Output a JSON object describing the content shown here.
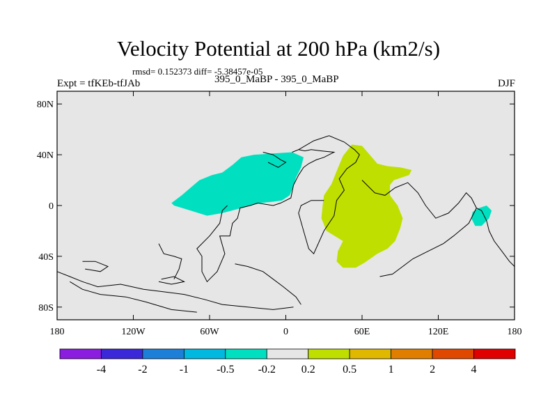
{
  "title": "Velocity Potential at 200 hPa (km2/s)",
  "stats": "rmsd= 0.152373 diff= -5.38457e-05",
  "left_label": "Expt = tfKEb-tfJAb",
  "center_label": "395_0_MaBP - 395_0_MaBP",
  "right_label": "DJF",
  "map": {
    "lon_range": [
      -180,
      180
    ],
    "lat_range": [
      -90,
      90
    ],
    "background_color": "#e6e6e6",
    "lat_ticks": [
      {
        "value": 80,
        "label": "80N"
      },
      {
        "value": 40,
        "label": "40N"
      },
      {
        "value": 0,
        "label": "0"
      },
      {
        "value": -40,
        "label": "40S"
      },
      {
        "value": -80,
        "label": "80S"
      }
    ],
    "lon_ticks": [
      {
        "value": -180,
        "label": "180"
      },
      {
        "value": -120,
        "label": "120W"
      },
      {
        "value": -60,
        "label": "60W"
      },
      {
        "value": 0,
        "label": "0"
      },
      {
        "value": 60,
        "label": "60E"
      },
      {
        "value": 120,
        "label": "120E"
      },
      {
        "value": 180,
        "label": "180"
      }
    ],
    "regions": [
      {
        "name": "negative-anomaly-atlantic",
        "color": "#00e0c0",
        "points": [
          [
            -90,
            2
          ],
          [
            -82,
            8
          ],
          [
            -75,
            14
          ],
          [
            -68,
            20
          ],
          [
            -58,
            24
          ],
          [
            -50,
            26
          ],
          [
            -42,
            32
          ],
          [
            -35,
            38
          ],
          [
            -25,
            40
          ],
          [
            -10,
            41
          ],
          [
            5,
            42
          ],
          [
            14,
            38
          ],
          [
            12,
            30
          ],
          [
            8,
            22
          ],
          [
            6,
            15
          ],
          [
            3,
            8
          ],
          [
            -3,
            4
          ],
          [
            -10,
            3
          ],
          [
            -20,
            2
          ],
          [
            -35,
            -2
          ],
          [
            -50,
            -6
          ],
          [
            -62,
            -8
          ],
          [
            -75,
            -4
          ],
          [
            -88,
            0
          ]
        ]
      },
      {
        "name": "positive-anomaly-africa-asia",
        "color": "#bfdf00",
        "points": [
          [
            52,
            48
          ],
          [
            60,
            47
          ],
          [
            66,
            40
          ],
          [
            72,
            33
          ],
          [
            80,
            31
          ],
          [
            90,
            30
          ],
          [
            99,
            28
          ],
          [
            97,
            24
          ],
          [
            85,
            20
          ],
          [
            82,
            16
          ],
          [
            82,
            8
          ],
          [
            88,
            0
          ],
          [
            92,
            -10
          ],
          [
            90,
            -18
          ],
          [
            86,
            -28
          ],
          [
            80,
            -34
          ],
          [
            72,
            -38
          ],
          [
            62,
            -45
          ],
          [
            55,
            -49
          ],
          [
            45,
            -49
          ],
          [
            40,
            -44
          ],
          [
            41,
            -36
          ],
          [
            45,
            -28
          ],
          [
            32,
            -20
          ],
          [
            28,
            -10
          ],
          [
            29,
            0
          ],
          [
            30,
            8
          ],
          [
            36,
            17
          ],
          [
            40,
            27
          ],
          [
            45,
            39
          ]
        ]
      },
      {
        "name": "negative-anomaly-pacific",
        "color": "#00e0c0",
        "points": [
          [
            146,
            -10
          ],
          [
            149,
            -16
          ],
          [
            154,
            -16
          ],
          [
            160,
            -10
          ],
          [
            162,
            -4
          ],
          [
            158,
            0
          ],
          [
            152,
            -2
          ],
          [
            147,
            -5
          ]
        ]
      }
    ],
    "coastlines": [
      [
        [
          5,
          42
        ],
        [
          10,
          44
        ],
        [
          15,
          43
        ],
        [
          20,
          44
        ],
        [
          28,
          43
        ],
        [
          38,
          42
        ],
        [
          34,
          40
        ],
        [
          30,
          38
        ],
        [
          24,
          36
        ],
        [
          18,
          33
        ],
        [
          14,
          30
        ],
        [
          10,
          24
        ],
        [
          6,
          16
        ],
        [
          4,
          6
        ],
        [
          -4,
          2
        ],
        [
          -10,
          0
        ],
        [
          -16,
          1
        ],
        [
          -22,
          2
        ],
        [
          -28,
          0
        ],
        [
          -36,
          -2
        ],
        [
          -38,
          -10
        ],
        [
          -42,
          -14
        ],
        [
          -44,
          -24
        ],
        [
          -52,
          -24
        ],
        [
          -48,
          -38
        ],
        [
          -54,
          -52
        ],
        [
          -62,
          -60
        ],
        [
          -66,
          -52
        ],
        [
          -66,
          -40
        ],
        [
          -70,
          -34
        ],
        [
          -60,
          -24
        ],
        [
          -52,
          -14
        ],
        [
          -50,
          -4
        ],
        [
          -46,
          0
        ]
      ],
      [
        [
          10,
          44
        ],
        [
          22,
          51
        ],
        [
          34,
          55
        ],
        [
          46,
          50
        ],
        [
          54,
          44
        ],
        [
          58,
          40
        ],
        [
          55,
          34
        ],
        [
          48,
          29
        ],
        [
          42,
          21
        ],
        [
          46,
          12
        ],
        [
          40,
          4
        ],
        [
          38,
          -8
        ],
        [
          30,
          -20
        ],
        [
          22,
          -38
        ],
        [
          18,
          -34
        ],
        [
          14,
          -20
        ],
        [
          10,
          -6
        ],
        [
          12,
          0
        ],
        [
          20,
          4
        ],
        [
          30,
          4
        ]
      ],
      [
        [
          60,
          20
        ],
        [
          70,
          10
        ],
        [
          78,
          8
        ],
        [
          86,
          14
        ],
        [
          96,
          18
        ],
        [
          104,
          10
        ],
        [
          110,
          0
        ],
        [
          118,
          -10
        ],
        [
          128,
          -6
        ],
        [
          136,
          2
        ],
        [
          142,
          10
        ],
        [
          146,
          6
        ],
        [
          150,
          -2
        ],
        [
          144,
          -14
        ],
        [
          132,
          -24
        ],
        [
          124,
          -30
        ],
        [
          112,
          -36
        ],
        [
          100,
          -42
        ],
        [
          92,
          -48
        ],
        [
          84,
          -54
        ],
        [
          74,
          -56
        ]
      ],
      [
        [
          -180,
          -52
        ],
        [
          -170,
          -56
        ],
        [
          -160,
          -60
        ],
        [
          -148,
          -64
        ],
        [
          -130,
          -62
        ],
        [
          -112,
          -66
        ],
        [
          -96,
          -68
        ],
        [
          -80,
          -70
        ],
        [
          -64,
          -74
        ],
        [
          -50,
          -78
        ],
        [
          -30,
          -80
        ],
        [
          -10,
          -82
        ],
        [
          6,
          -80
        ]
      ],
      [
        [
          -170,
          -60
        ],
        [
          -160,
          -66
        ],
        [
          -146,
          -70
        ],
        [
          -126,
          -72
        ],
        [
          -110,
          -76
        ],
        [
          -90,
          -82
        ],
        [
          -70,
          -84
        ]
      ],
      [
        [
          -100,
          -30
        ],
        [
          -96,
          -38
        ],
        [
          -88,
          -40
        ],
        [
          -82,
          -42
        ],
        [
          -84,
          -50
        ],
        [
          -88,
          -58
        ]
      ],
      [
        [
          -160,
          -44
        ],
        [
          -150,
          -44
        ],
        [
          -140,
          -48
        ],
        [
          -146,
          -52
        ],
        [
          -158,
          -50
        ]
      ],
      [
        [
          -100,
          -60
        ],
        [
          -90,
          -62
        ],
        [
          -80,
          -60
        ],
        [
          -88,
          -56
        ],
        [
          -98,
          -58
        ]
      ],
      [
        [
          150,
          -2
        ],
        [
          154,
          -4
        ],
        [
          158,
          -12
        ],
        [
          160,
          -20
        ],
        [
          164,
          -28
        ],
        [
          170,
          -36
        ],
        [
          176,
          -44
        ],
        [
          180,
          -48
        ]
      ],
      [
        [
          -40,
          -46
        ],
        [
          -30,
          -48
        ],
        [
          -18,
          -52
        ],
        [
          -10,
          -58
        ],
        [
          -2,
          -64
        ],
        [
          8,
          -72
        ],
        [
          12,
          -78
        ]
      ],
      [
        [
          -18,
          42
        ],
        [
          -10,
          40
        ],
        [
          -4,
          36
        ],
        [
          0,
          34
        ],
        [
          -6,
          30
        ],
        [
          -14,
          34
        ]
      ]
    ]
  },
  "colorbar": {
    "colors": [
      "#8b1de0",
      "#3b28d8",
      "#1e7fd8",
      "#00b8e0",
      "#00e0c0",
      "#e6e6e6",
      "#bfdf00",
      "#e0b800",
      "#e07e00",
      "#e04800",
      "#e00000"
    ],
    "labels": [
      "-4",
      "-2",
      "-1",
      "-0.5",
      "-0.2",
      "0.2",
      "0.5",
      "1",
      "2",
      "4"
    ]
  }
}
